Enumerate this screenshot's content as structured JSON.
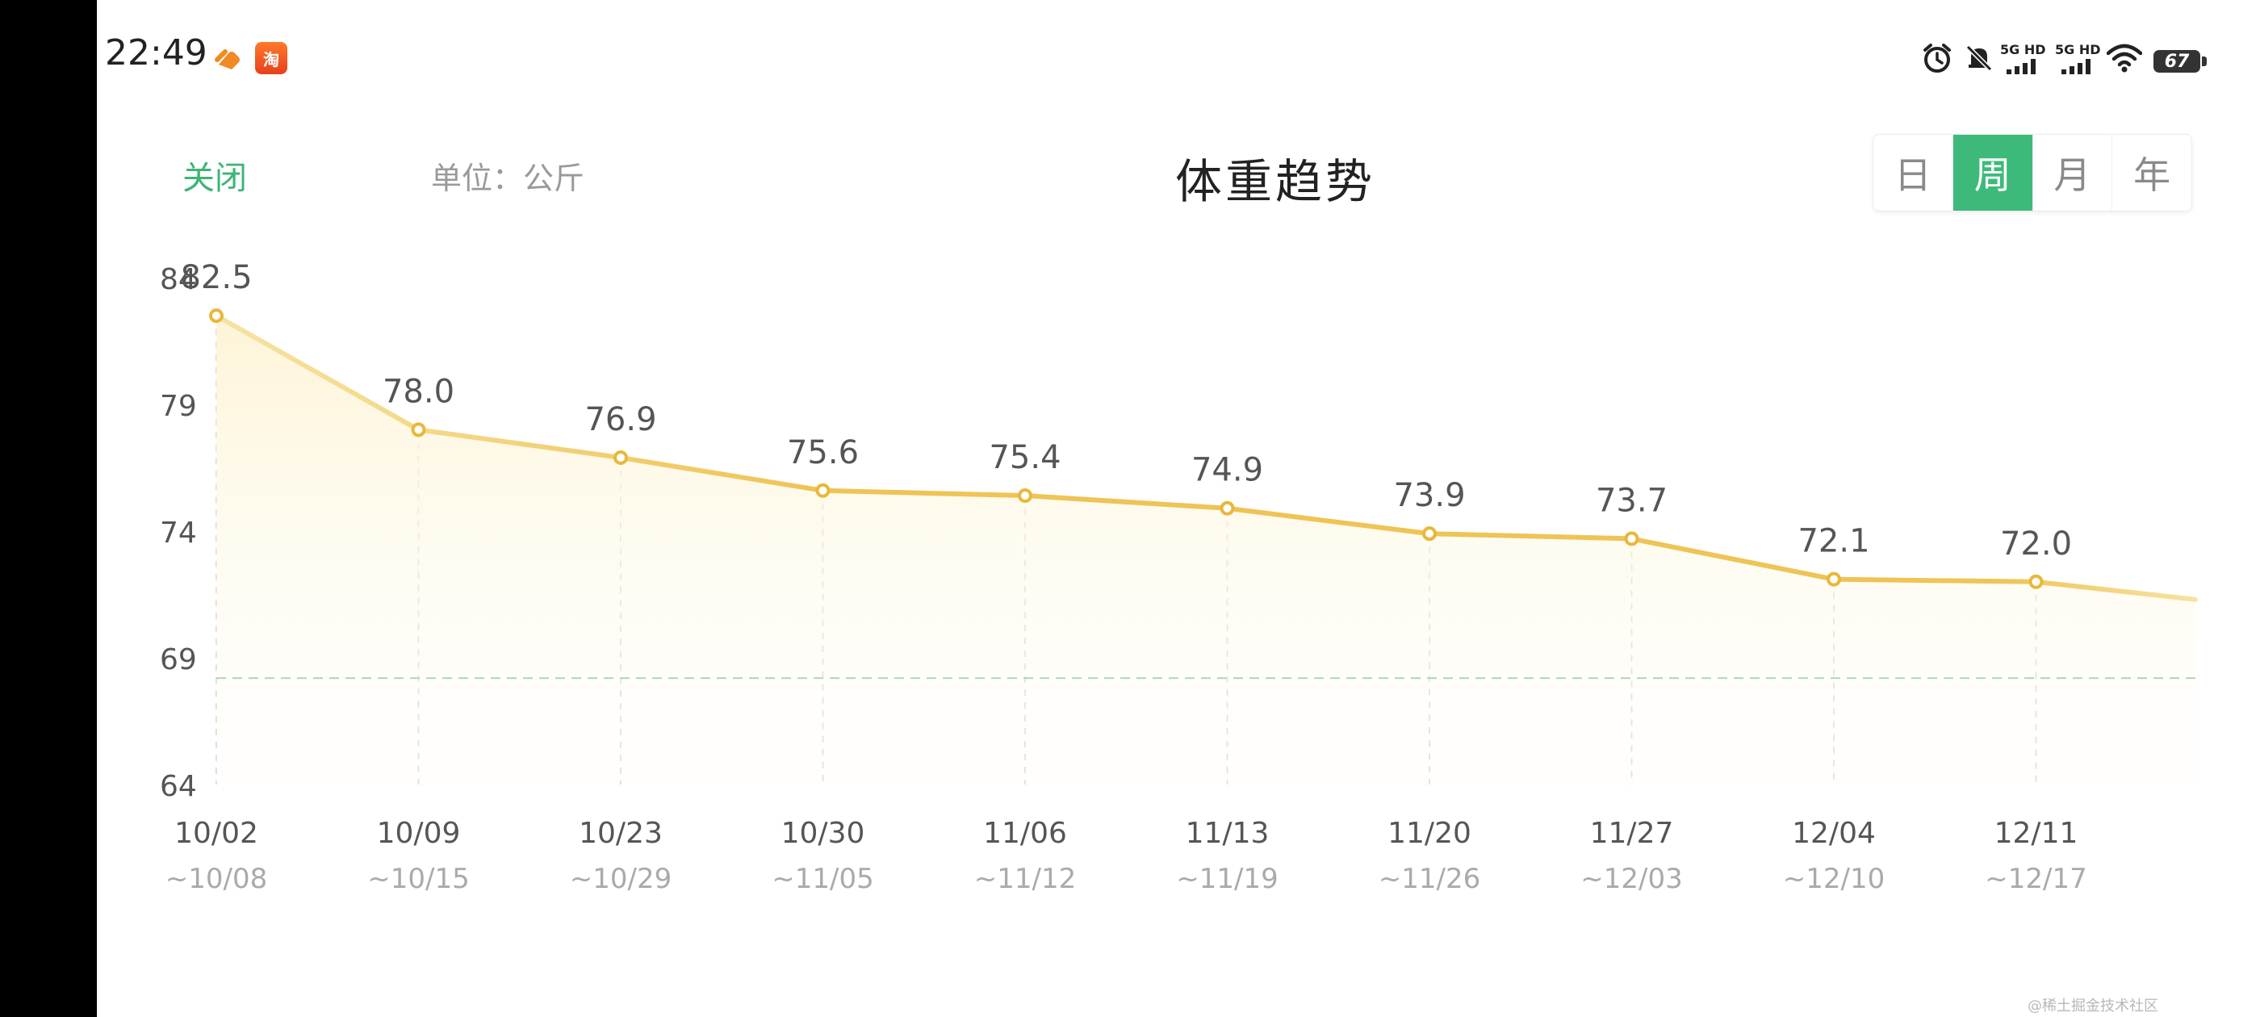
{
  "status_bar": {
    "time": "22:49",
    "net1_label": "5G HD",
    "net2_label": "5G HD",
    "battery": "67",
    "taobao_icon_text": "淘"
  },
  "header": {
    "close_label": "关闭",
    "unit_label": "单位：公斤",
    "title": "体重趋势",
    "period_tabs": [
      {
        "label": "日",
        "active": false
      },
      {
        "label": "周",
        "active": true
      },
      {
        "label": "月",
        "active": false
      },
      {
        "label": "年",
        "active": false
      }
    ]
  },
  "colors": {
    "accent_green": "#3dba7a",
    "line_yellow": "#eec456",
    "target_line": "#a9d8c5"
  },
  "chart_data": {
    "type": "line",
    "categories": [
      "10/02 ~10/08",
      "10/09 ~10/15",
      "10/23 ~10/29",
      "10/30 ~11/05",
      "11/06 ~11/12",
      "11/13 ~11/19",
      "11/20 ~11/26",
      "11/27 ~12/03",
      "12/04 ~12/10",
      "12/11 ~12/17"
    ],
    "x_labels": [
      {
        "date": "10/02",
        "range": "~10/08"
      },
      {
        "date": "10/09",
        "range": "~10/15"
      },
      {
        "date": "10/23",
        "range": "~10/29"
      },
      {
        "date": "10/30",
        "range": "~11/05"
      },
      {
        "date": "11/06",
        "range": "~11/12"
      },
      {
        "date": "11/13",
        "range": "~11/19"
      },
      {
        "date": "11/20",
        "range": "~11/26"
      },
      {
        "date": "11/27",
        "range": "~12/03"
      },
      {
        "date": "12/04",
        "range": "~12/10"
      },
      {
        "date": "12/11",
        "range": "~12/17"
      }
    ],
    "values": [
      82.5,
      78.0,
      76.9,
      75.6,
      75.4,
      74.9,
      73.9,
      73.7,
      72.1,
      72.0
    ],
    "value_labels": [
      "82.5",
      "78.0",
      "76.9",
      "75.6",
      "75.4",
      "74.9",
      "73.9",
      "73.7",
      "72.1",
      "72.0"
    ],
    "y_ticks": [
      "84",
      "79",
      "74",
      "69",
      "64"
    ],
    "ylim": [
      64,
      84
    ],
    "target_value": 68.2,
    "title": "体重趋势",
    "ylabel": "单位：公斤",
    "grid": false
  },
  "watermark": "@稀土掘金技术社区"
}
